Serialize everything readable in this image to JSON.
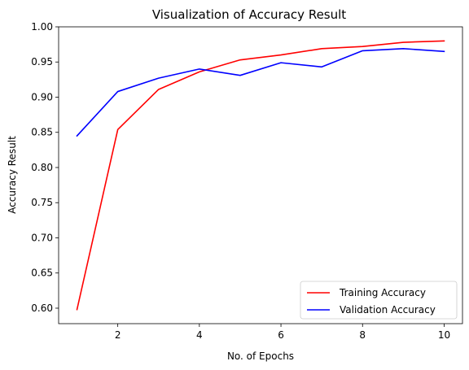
{
  "chart_data": {
    "type": "line",
    "title": "Visualization of Accuracy Result",
    "xlabel": "No. of Epochs",
    "ylabel": "Accuracy Result",
    "x": [
      1,
      2,
      3,
      4,
      5,
      6,
      7,
      8,
      9,
      10
    ],
    "xlim": [
      0.55,
      10.45
    ],
    "ylim": [
      0.578,
      1.0
    ],
    "xticks": [
      2,
      4,
      6,
      8,
      10
    ],
    "xtick_labels": [
      "2",
      "4",
      "6",
      "8",
      "10"
    ],
    "yticks": [
      0.6,
      0.65,
      0.7,
      0.75,
      0.8,
      0.85,
      0.9,
      0.95,
      1.0
    ],
    "ytick_labels": [
      "0.60",
      "0.65",
      "0.70",
      "0.75",
      "0.80",
      "0.85",
      "0.90",
      "0.95",
      "1.00"
    ],
    "grid": false,
    "legend_position": "bottom-right",
    "series": [
      {
        "name": "Training Accuracy",
        "color": "#ff0000",
        "values": [
          0.598,
          0.854,
          0.911,
          0.936,
          0.953,
          0.96,
          0.969,
          0.972,
          0.978,
          0.98
        ]
      },
      {
        "name": "Validation Accuracy",
        "color": "#0000ff",
        "values": [
          0.845,
          0.908,
          0.927,
          0.94,
          0.931,
          0.949,
          0.943,
          0.966,
          0.969,
          0.965
        ]
      }
    ]
  }
}
